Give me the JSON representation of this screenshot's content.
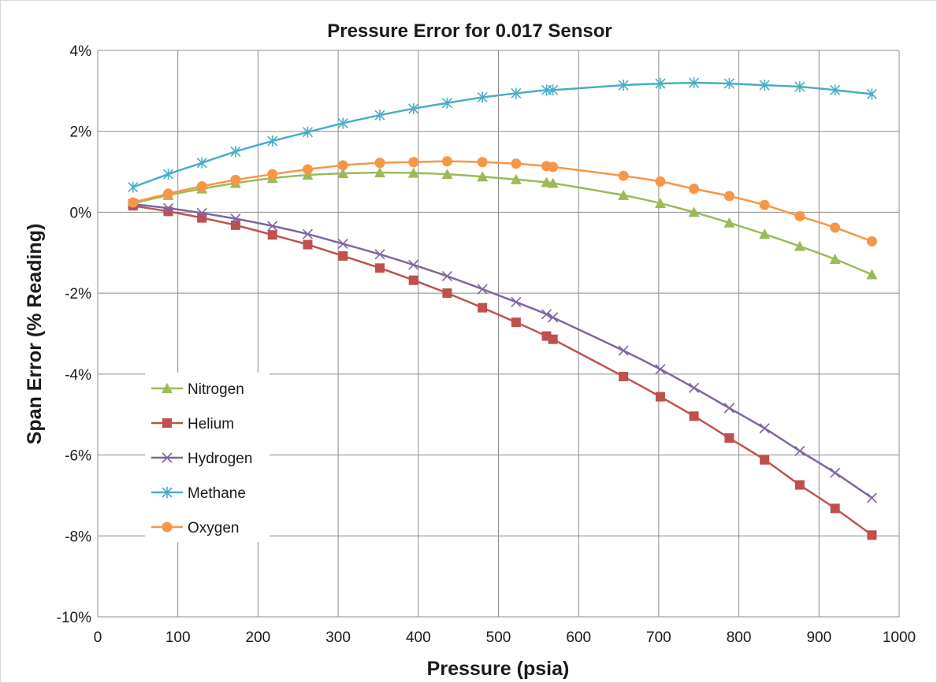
{
  "chart_data": {
    "type": "line",
    "title": "Pressure Error for 0.017 Sensor",
    "xlabel": "Pressure (psia)",
    "ylabel": "Span Error (% Reading)",
    "xlim": [
      0,
      1000
    ],
    "ylim": [
      -10,
      4
    ],
    "xticks": [
      0,
      100,
      200,
      300,
      400,
      500,
      600,
      700,
      800,
      900,
      1000
    ],
    "yticks": [
      4,
      2,
      0,
      -2,
      -4,
      -6,
      -8,
      -10
    ],
    "ytick_labels": [
      "4%",
      "2%",
      "0%",
      "-2%",
      "-4%",
      "-6%",
      "-8%",
      "-10%"
    ],
    "grid": true,
    "legend_position": "bottom-left",
    "series": [
      {
        "name": "Nitrogen",
        "color": "#9bbb59",
        "marker": "triangle",
        "x": [
          44,
          88,
          130,
          172,
          218,
          262,
          306,
          352,
          394,
          436,
          480,
          522,
          560,
          568,
          656,
          702,
          744,
          788,
          832,
          876,
          920,
          966
        ],
        "y": [
          0.22,
          0.42,
          0.58,
          0.72,
          0.84,
          0.92,
          0.96,
          0.98,
          0.97,
          0.94,
          0.88,
          0.81,
          0.74,
          0.72,
          0.42,
          0.22,
          0.0,
          -0.26,
          -0.54,
          -0.84,
          -1.16,
          -1.54
        ]
      },
      {
        "name": "Helium",
        "color": "#c0504d",
        "marker": "square",
        "x": [
          44,
          88,
          130,
          172,
          218,
          262,
          306,
          352,
          394,
          436,
          480,
          522,
          560,
          568,
          656,
          702,
          744,
          788,
          832,
          876,
          920,
          966
        ],
        "y": [
          0.16,
          0.02,
          -0.14,
          -0.32,
          -0.56,
          -0.8,
          -1.08,
          -1.38,
          -1.68,
          -2.0,
          -2.36,
          -2.72,
          -3.06,
          -3.14,
          -4.06,
          -4.56,
          -5.04,
          -5.58,
          -6.12,
          -6.74,
          -7.32,
          -7.98
        ]
      },
      {
        "name": "Hydrogen",
        "color": "#8064a2",
        "marker": "x",
        "x": [
          44,
          88,
          130,
          172,
          218,
          262,
          306,
          352,
          394,
          436,
          480,
          522,
          560,
          568,
          656,
          702,
          744,
          788,
          832,
          876,
          920,
          966
        ],
        "y": [
          0.2,
          0.1,
          -0.02,
          -0.16,
          -0.34,
          -0.54,
          -0.78,
          -1.04,
          -1.3,
          -1.58,
          -1.9,
          -2.22,
          -2.52,
          -2.6,
          -3.42,
          -3.88,
          -4.34,
          -4.84,
          -5.34,
          -5.9,
          -6.44,
          -7.06
        ]
      },
      {
        "name": "Methane",
        "color": "#4bacc6",
        "marker": "asterisk",
        "x": [
          44,
          88,
          130,
          172,
          218,
          262,
          306,
          352,
          394,
          436,
          480,
          522,
          560,
          568,
          656,
          702,
          744,
          788,
          832,
          876,
          920,
          966
        ],
        "y": [
          0.62,
          0.94,
          1.22,
          1.5,
          1.76,
          1.98,
          2.2,
          2.4,
          2.56,
          2.7,
          2.84,
          2.94,
          3.02,
          3.02,
          3.14,
          3.18,
          3.2,
          3.18,
          3.14,
          3.1,
          3.02,
          2.92
        ]
      },
      {
        "name": "Oxygen",
        "color": "#f79646",
        "marker": "circle",
        "x": [
          44,
          88,
          130,
          172,
          218,
          262,
          306,
          352,
          394,
          436,
          480,
          522,
          560,
          568,
          656,
          702,
          744,
          788,
          832,
          876,
          920,
          966
        ],
        "y": [
          0.24,
          0.46,
          0.64,
          0.8,
          0.94,
          1.06,
          1.16,
          1.22,
          1.24,
          1.26,
          1.24,
          1.2,
          1.14,
          1.12,
          0.9,
          0.76,
          0.58,
          0.4,
          0.18,
          -0.1,
          -0.38,
          -0.72
        ]
      }
    ]
  }
}
